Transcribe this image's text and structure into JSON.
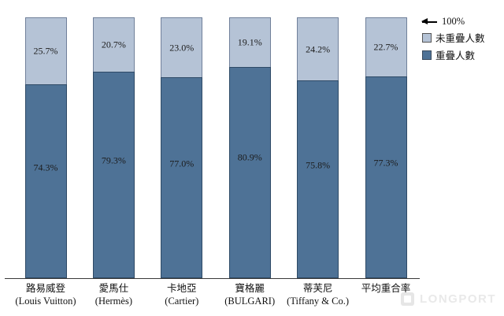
{
  "chart_data": {
    "type": "bar",
    "stacked": true,
    "title": "",
    "xlabel": "",
    "ylabel": "",
    "ylim": [
      0,
      100
    ],
    "grid": false,
    "value_suffix": "%",
    "legend_position": "top-right",
    "categories": [
      {
        "name": "路易威登",
        "sub": "(Louis Vuitton)"
      },
      {
        "name": "愛馬仕",
        "sub": "(Hermès)"
      },
      {
        "name": "卡地亞",
        "sub": "(Cartier)"
      },
      {
        "name": "寶格麗",
        "sub": "(BULGARI)"
      },
      {
        "name": "蒂芙尼",
        "sub": "(Tiffany & Co.)"
      },
      {
        "name": "平均重合率",
        "sub": ""
      }
    ],
    "series": [
      {
        "name": "重疊人數",
        "color": "#4e7296",
        "border_color": "#2e4a66",
        "values": [
          74.3,
          79.3,
          77.0,
          80.9,
          75.8,
          77.3
        ]
      },
      {
        "name": "未重疊人數",
        "color": "#b5c3d6",
        "border_color": "#70809a",
        "values": [
          25.7,
          20.7,
          23.0,
          19.1,
          24.2,
          22.7
        ]
      }
    ]
  },
  "legend": {
    "arrow_label": "100%",
    "items": [
      "未重疊人數",
      "重疊人數"
    ]
  },
  "watermark": {
    "text": "LONGPORT"
  }
}
